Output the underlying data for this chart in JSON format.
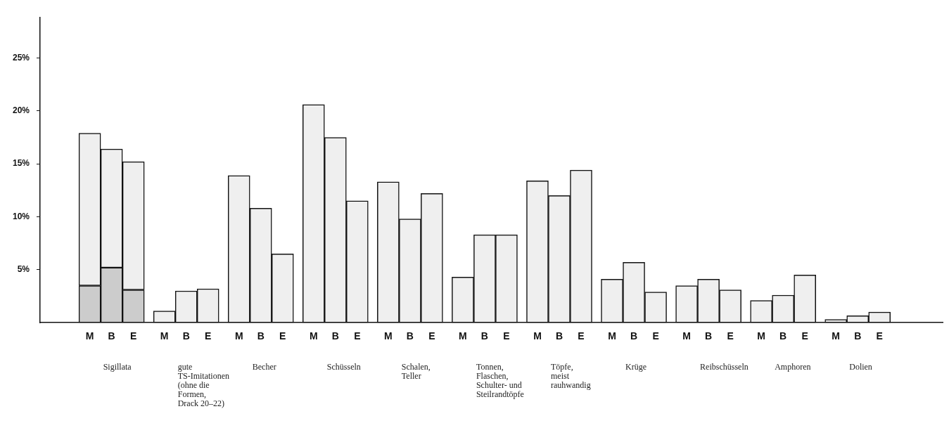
{
  "chart_data": {
    "type": "bar",
    "stacked": true,
    "categories": [
      "M",
      "B",
      "E",
      "M",
      "B",
      "E",
      "M",
      "B",
      "E",
      "M",
      "B",
      "E",
      "M",
      "B",
      "E",
      "M",
      "B",
      "E",
      "M",
      "B",
      "E",
      "M",
      "B",
      "E",
      "M",
      "B",
      "E",
      "M",
      "B",
      "E",
      "M",
      "B",
      "E"
    ],
    "series": [
      {
        "color": "#cccccc",
        "values": [
          3.5,
          5.2,
          3.1,
          null,
          null,
          null,
          null,
          null,
          null,
          null,
          null,
          null,
          null,
          null,
          null,
          null,
          null,
          null,
          null,
          null,
          null,
          null,
          null,
          null,
          null,
          null,
          null,
          null,
          null,
          null,
          null,
          null,
          null
        ]
      },
      {
        "color": "#efefef",
        "values": [
          14.4,
          11.2,
          12.1,
          1.1,
          3.0,
          3.2,
          13.9,
          10.8,
          6.5,
          20.6,
          17.5,
          11.5,
          13.3,
          9.8,
          12.2,
          4.3,
          8.3,
          8.3,
          13.4,
          12.0,
          14.4,
          4.1,
          5.7,
          2.9,
          3.5,
          4.1,
          3.1,
          2.1,
          2.6,
          4.5,
          0.3,
          0.65,
          1.0
        ]
      }
    ],
    "ylim": [
      0,
      28.8
    ],
    "yticks": [
      {
        "value": 5,
        "label": "5%"
      },
      {
        "value": 10,
        "label": "10%"
      },
      {
        "value": 15,
        "label": "15%"
      },
      {
        "value": 20,
        "label": "20%"
      },
      {
        "value": 25,
        "label": "25%"
      }
    ],
    "grid": false,
    "legend": false,
    "annotations": [
      "Sigillata",
      "gute\nTS-Imitationen\n(ohne die\nFormen,\nDrack 20–22)",
      "Becher",
      "Schüsseln",
      "Schalen,\nTeller",
      "Tonnen,\nFlaschen,\nSchulter- und\nSteilrandtöpfe",
      "Töpfe,\nmeist\nrauhwandig",
      "Krüge",
      "Reibschüsseln",
      "Amphoren",
      "Dolien"
    ]
  }
}
